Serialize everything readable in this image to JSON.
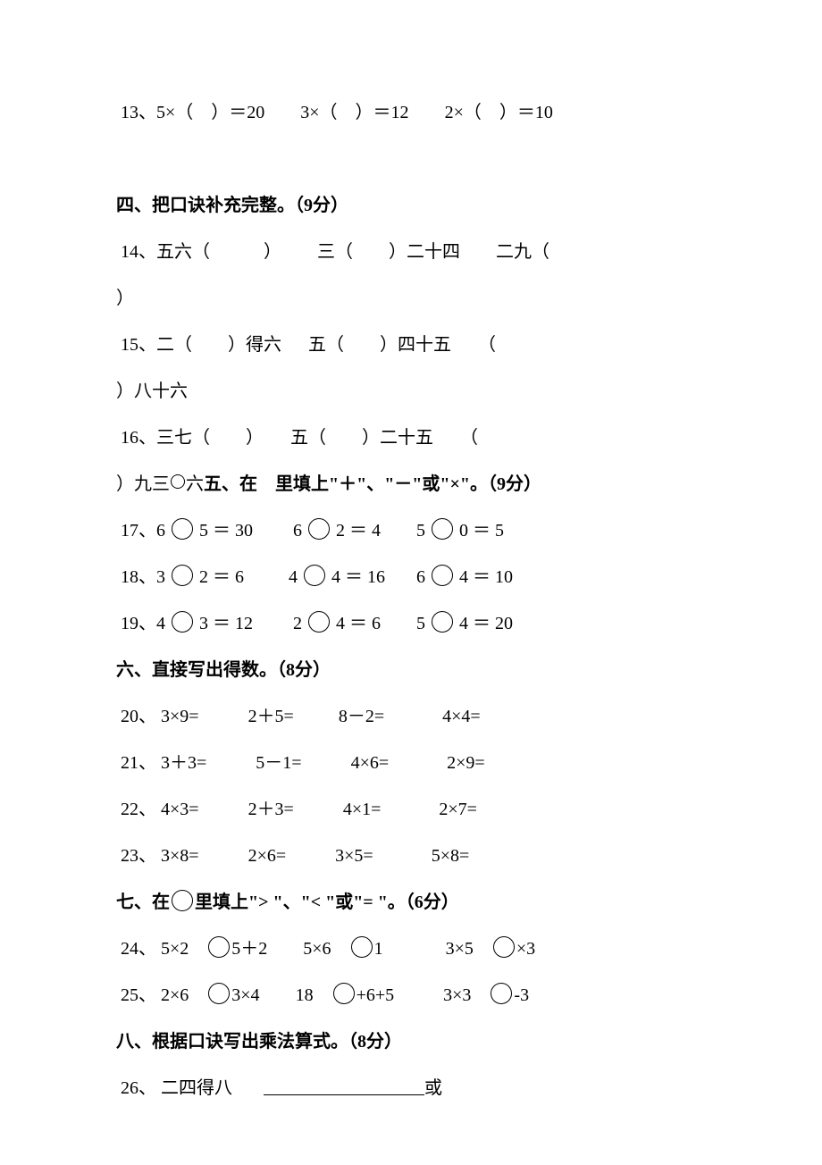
{
  "q13": {
    "p1": " 13、5×（　）＝20",
    "p2": "3×（　）＝12",
    "p3": "2×（　）＝10"
  },
  "s4": {
    "title": "四、把口诀补充完整。（9分）"
  },
  "q14": {
    "p1": " 14、五六（　　　）",
    "p2": "三（　　）二十四",
    "p3": "二九（"
  },
  "q14b": "）",
  "q15": {
    "p1": " 15、二（　　）得六",
    "p2": "五（　　）四十五",
    "p3": "（"
  },
  "q15b": "）八十六",
  "q16": {
    "p1": " 16、三七（　　）",
    "p2": "五（　　）二十五",
    "p3": "（"
  },
  "q16b": {
    "pre": "）九三",
    "bold": "五、在　里填上\"＋\"、\"－\"或\"×\"。（9分）"
  },
  "q17": {
    "a": " 17、6 ",
    "b": " 5 ＝ 30",
    "c": "6 ",
    "d": " 2 ＝ 4",
    "e": "5 ",
    "f": " 0 ＝ 5"
  },
  "q18": {
    "a": " 18、3 ",
    "b": " 2 ＝ 6",
    "c": "4 ",
    "d": " 4 ＝ 16",
    "e": "6 ",
    "f": " 4 ＝ 10"
  },
  "q19": {
    "a": " 19、4 ",
    "b": " 3 ＝ 12",
    "c": "2 ",
    "d": " 4 ＝ 6",
    "e": "5 ",
    "f": " 4 ＝ 20"
  },
  "s6": {
    "title": "六、直接写出得数。（8分）"
  },
  "q20": {
    "a": " 20、 3×9=",
    "b": "2＋5=",
    "c": "8－2=",
    "d": "4×4="
  },
  "q21": {
    "a": " 21、 3＋3=",
    "b": "5－1=",
    "c": "4×6=",
    "d": "2×9="
  },
  "q22": {
    "a": " 22、 4×3=",
    "b": "2＋3=",
    "c": "4×1=",
    "d": "2×7="
  },
  "q23": {
    "a": " 23、 3×8=",
    "b": "2×6=",
    "c": "3×5=",
    "d": "5×8="
  },
  "s7": {
    "title": "七、在",
    "title2": "里填上\"> \"、\"< \"或\"= \"。（6分）"
  },
  "q24": {
    "a": " 24、 5×2　",
    "b": "5＋2",
    "c": "5×6　",
    "d": "1",
    "e": "3×5　",
    "f": "×3"
  },
  "q25": {
    "a": " 25、 2×6　",
    "b": "3×4",
    "c": "18　",
    "d": "+6+5",
    "e": "3×3　",
    "f": "-3"
  },
  "s8": {
    "title": "八、根据口诀写出乘法算式。（8分）"
  },
  "q26": {
    "a": " 26、 二四得八",
    "b": "或"
  }
}
